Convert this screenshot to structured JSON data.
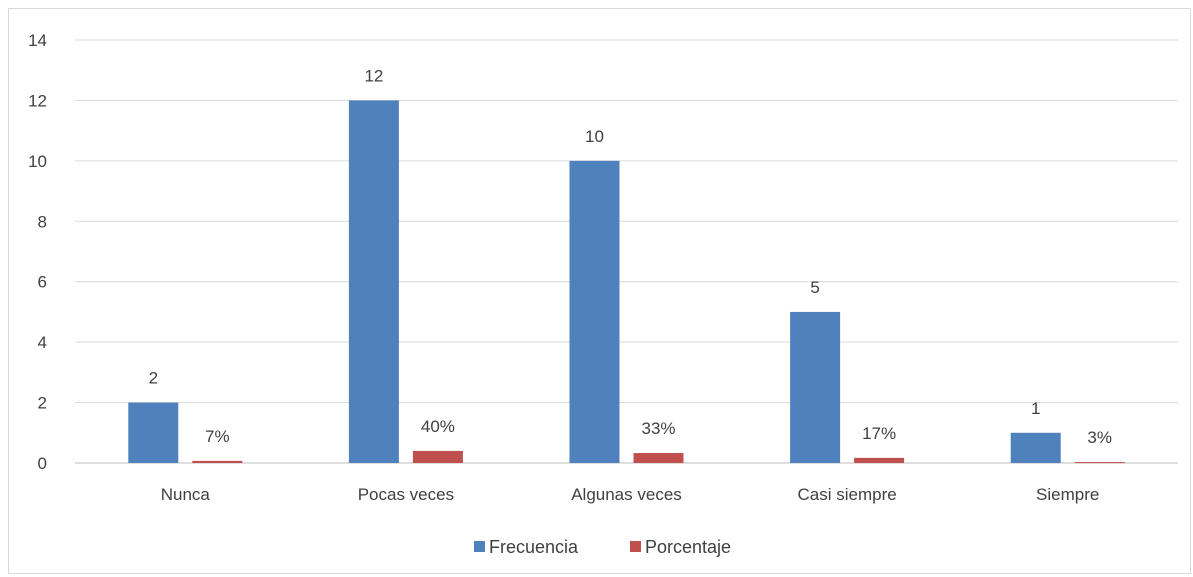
{
  "chart_data": {
    "type": "bar",
    "categories": [
      "Nunca",
      "Pocas veces",
      "Algunas veces",
      "Casi siempre",
      "Siempre"
    ],
    "series": [
      {
        "name": "Frecuencia",
        "values": [
          2,
          12,
          10,
          5,
          1
        ],
        "labels": [
          "2",
          "12",
          "10",
          "5",
          "1"
        ],
        "color": "#4f81bd"
      },
      {
        "name": "Porcentaje",
        "values": [
          0.07,
          0.4,
          0.33,
          0.17,
          0.03
        ],
        "labels": [
          "7%",
          "40%",
          "33%",
          "17%",
          "3%"
        ],
        "color": "#c0504d"
      }
    ],
    "ylim": [
      0,
      14
    ],
    "yticks": [
      0,
      2,
      4,
      6,
      8,
      10,
      12,
      14
    ],
    "grid": true,
    "legend_position": "bottom"
  }
}
